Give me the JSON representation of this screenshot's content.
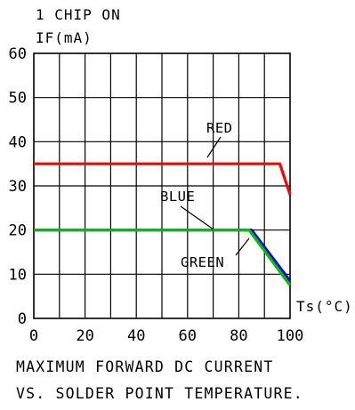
{
  "header_text": "1 CHIP ON",
  "caption": {
    "line1": "MAXIMUM FORWARD DC CURRENT",
    "line2": "VS. SOLDER POINT TEMPERATURE."
  },
  "colors": {
    "red": "#ff0000",
    "blue": "#0000ff",
    "green": "#00c000",
    "grid": "#000000"
  },
  "chart_data": {
    "type": "line",
    "title": "",
    "xlabel": "Ts(°C)",
    "ylabel": "IF(mA)",
    "xlim": [
      0,
      100
    ],
    "ylim": [
      0,
      60
    ],
    "xticks": [
      0,
      20,
      40,
      60,
      80,
      100
    ],
    "yticks": [
      0,
      10,
      20,
      30,
      40,
      50,
      60
    ],
    "grid": true,
    "series": [
      {
        "name": "RED",
        "color": "#ff0000",
        "x": [
          0,
          96,
          100
        ],
        "y": [
          35,
          35,
          28
        ]
      },
      {
        "name": "BLUE",
        "color": "#0000ff",
        "x": [
          0,
          85,
          100
        ],
        "y": [
          20,
          20,
          8.5
        ]
      },
      {
        "name": "GREEN",
        "color": "#00c000",
        "x": [
          0,
          84,
          100
        ],
        "y": [
          20,
          20,
          7.5
        ]
      }
    ]
  }
}
